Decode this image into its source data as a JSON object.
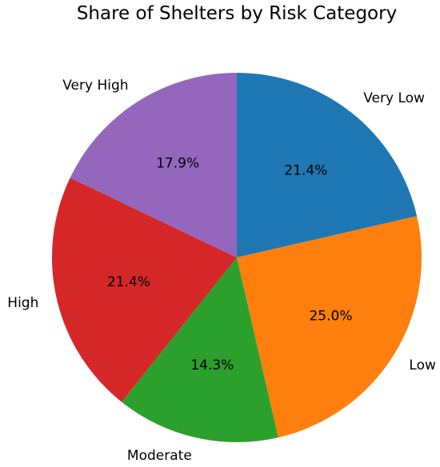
{
  "chart_data": {
    "type": "pie",
    "title": "Share of Shelters by Risk Category",
    "categories": [
      "Very Low",
      "Low",
      "Moderate",
      "High",
      "Very High"
    ],
    "values": [
      21.4,
      25.0,
      14.3,
      21.4,
      17.9
    ],
    "value_labels": [
      "21.4%",
      "25.0%",
      "14.3%",
      "21.4%",
      "17.9%"
    ],
    "colors": [
      "#1f77b4",
      "#ff7f0e",
      "#2ca02c",
      "#d62728",
      "#9467bd"
    ],
    "start_angle_deg": 90,
    "direction": "clockwise",
    "legend": "none"
  }
}
